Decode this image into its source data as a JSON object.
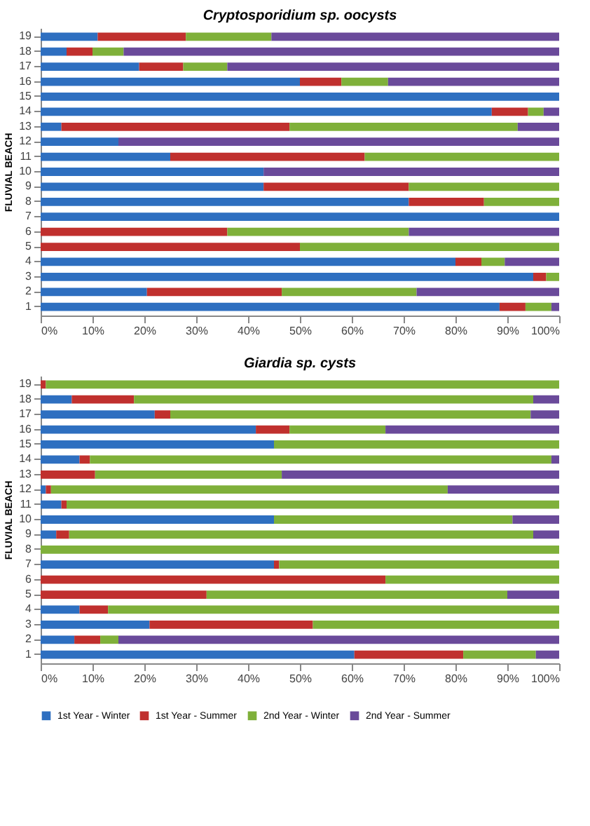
{
  "chart_data": [
    {
      "type": "bar",
      "orientation": "horizontal",
      "stacked": true,
      "title": "Cryptosporidium sp. oocysts",
      "ylabel": "FLUVIAL BEACH",
      "categories": [
        "19",
        "18",
        "17",
        "16",
        "15",
        "14",
        "13",
        "12",
        "11",
        "10",
        "9",
        "8",
        "7",
        "6",
        "5",
        "4",
        "3",
        "2",
        "1"
      ],
      "series": [
        {
          "name": "1st Year - Winter",
          "color": "#2e6fc0",
          "values": [
            11,
            5,
            19,
            50,
            100,
            87,
            4,
            15,
            25,
            43,
            43,
            71,
            100,
            0,
            0,
            80,
            95,
            20.5,
            88.5
          ]
        },
        {
          "name": "1st Year - Summer",
          "color": "#c0302e",
          "values": [
            17,
            5,
            8.5,
            8,
            0,
            7,
            44,
            0,
            37.5,
            0,
            28,
            14.5,
            0,
            36,
            50,
            5,
            2.5,
            26,
            5
          ]
        },
        {
          "name": "2nd Year - Winter",
          "color": "#7fb03a",
          "values": [
            16.5,
            6,
            8.5,
            9,
            0,
            3,
            44,
            0,
            37.5,
            0,
            29,
            14.5,
            0,
            35,
            50,
            4.5,
            2.5,
            26,
            5
          ]
        },
        {
          "name": "2nd Year - Summer",
          "color": "#6a4a9a",
          "values": [
            55.5,
            84,
            64,
            33,
            0,
            3,
            8,
            85,
            0,
            57,
            0,
            0,
            0,
            29,
            0,
            10.5,
            0,
            27.5,
            1.5
          ]
        }
      ],
      "xlim": [
        0,
        100
      ],
      "xticks": [
        {
          "value": 0,
          "label": "0%"
        },
        {
          "value": 10,
          "label": "10%"
        },
        {
          "value": 20,
          "label": "20%"
        },
        {
          "value": 30,
          "label": "30%"
        },
        {
          "value": 40,
          "label": "40%"
        },
        {
          "value": 50,
          "label": "50%"
        },
        {
          "value": 60,
          "label": "60%"
        },
        {
          "value": 70,
          "label": "70%"
        },
        {
          "value": 80,
          "label": "80%"
        },
        {
          "value": 90,
          "label": "90%"
        },
        {
          "value": 100,
          "label": "100%"
        }
      ],
      "grid": false,
      "legend": "bottom"
    },
    {
      "type": "bar",
      "orientation": "horizontal",
      "stacked": true,
      "title": "Giardia sp. cysts",
      "ylabel": "FLUVIAL BEACH",
      "categories": [
        "19",
        "18",
        "17",
        "16",
        "15",
        "14",
        "13",
        "12",
        "11",
        "10",
        "9",
        "8",
        "7",
        "6",
        "5",
        "4",
        "3",
        "2",
        "1"
      ],
      "series": [
        {
          "name": "1st Year - Winter",
          "color": "#2e6fc0",
          "values": [
            0,
            6,
            22,
            41.5,
            45,
            7.5,
            0,
            1,
            4,
            45,
            3,
            0,
            45,
            0,
            0,
            7.5,
            21,
            6.5,
            60.5
          ]
        },
        {
          "name": "1st Year - Summer",
          "color": "#c0302e",
          "values": [
            1,
            12,
            3,
            6.5,
            0,
            2,
            10.5,
            1,
            1,
            0,
            2.5,
            0,
            1,
            66.5,
            32,
            5.5,
            31.5,
            5,
            21
          ]
        },
        {
          "name": "2nd Year - Winter",
          "color": "#7fb03a",
          "values": [
            99,
            77,
            69.5,
            18.5,
            55,
            89,
            36,
            76.5,
            95,
            46,
            89.5,
            100,
            54,
            33.5,
            58,
            87,
            47.5,
            3.5,
            14
          ]
        },
        {
          "name": "2nd Year - Summer",
          "color": "#6a4a9a",
          "values": [
            0,
            5,
            5.5,
            33.5,
            0,
            1.5,
            53.5,
            21.5,
            0,
            9,
            5,
            0,
            0,
            0,
            10,
            0,
            0,
            85,
            4.5
          ]
        }
      ],
      "xlim": [
        0,
        100
      ],
      "xticks": [
        {
          "value": 0,
          "label": "0%"
        },
        {
          "value": 10,
          "label": "10%"
        },
        {
          "value": 20,
          "label": "20%"
        },
        {
          "value": 30,
          "label": "30%"
        },
        {
          "value": 40,
          "label": "40%"
        },
        {
          "value": 50,
          "label": "50%"
        },
        {
          "value": 60,
          "label": "60%"
        },
        {
          "value": 70,
          "label": "70%"
        },
        {
          "value": 80,
          "label": "80%"
        },
        {
          "value": 90,
          "label": "90%"
        },
        {
          "value": 100,
          "label": "100%"
        }
      ],
      "grid": false,
      "legend": "bottom"
    }
  ]
}
